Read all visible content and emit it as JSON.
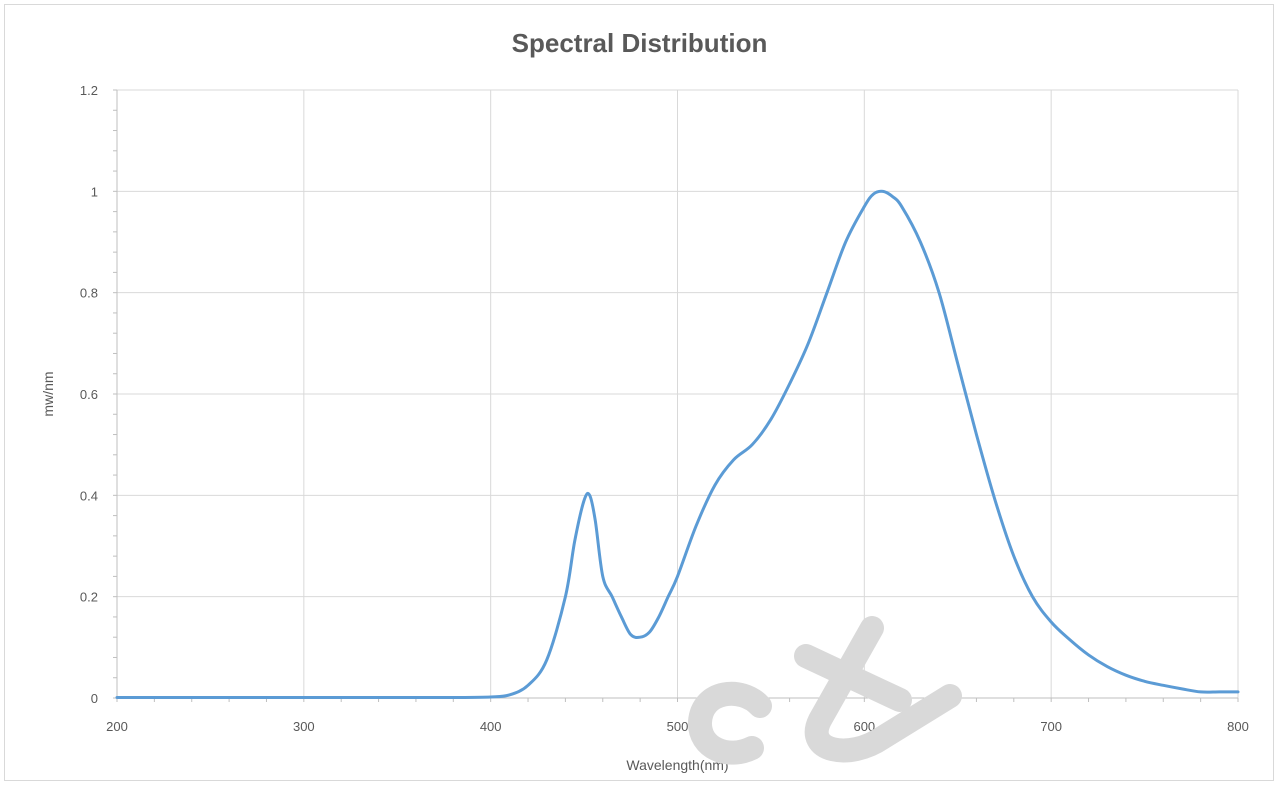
{
  "chart_data": {
    "type": "line",
    "title": "Spectral Distribution",
    "xlabel": "Wavelength(nm)",
    "ylabel": "mw/nm",
    "xlim": [
      200,
      800
    ],
    "ylim": [
      0,
      1.2
    ],
    "x_ticks": [
      200,
      300,
      400,
      500,
      600,
      700,
      800
    ],
    "y_ticks": [
      0,
      0.2,
      0.4,
      0.6,
      0.8,
      1,
      1.2
    ],
    "grid": true,
    "colors": {
      "series": "#5b9bd5",
      "grid": "#d9d9d9",
      "text": "#595959",
      "watermark": "#d9d9d9"
    },
    "series": [
      {
        "x": [
          200,
          250,
          300,
          350,
          380,
          400,
          410,
          420,
          430,
          440,
          445,
          450,
          453,
          456,
          460,
          465,
          470,
          475,
          480,
          485,
          490,
          495,
          500,
          510,
          520,
          530,
          540,
          550,
          560,
          570,
          580,
          590,
          600,
          605,
          610,
          615,
          620,
          630,
          640,
          650,
          660,
          670,
          680,
          690,
          700,
          710,
          720,
          730,
          740,
          750,
          760,
          770,
          780,
          790,
          800
        ],
        "y": [
          0.001,
          0.001,
          0.001,
          0.001,
          0.001,
          0.002,
          0.006,
          0.025,
          0.075,
          0.2,
          0.31,
          0.39,
          0.4,
          0.35,
          0.24,
          0.2,
          0.16,
          0.125,
          0.12,
          0.13,
          0.16,
          0.2,
          0.24,
          0.34,
          0.42,
          0.47,
          0.5,
          0.55,
          0.62,
          0.7,
          0.8,
          0.9,
          0.97,
          0.995,
          1.0,
          0.99,
          0.97,
          0.9,
          0.8,
          0.66,
          0.52,
          0.39,
          0.28,
          0.2,
          0.15,
          0.115,
          0.085,
          0.062,
          0.045,
          0.033,
          0.025,
          0.018,
          0.012,
          0.012,
          0.012
        ]
      }
    ]
  }
}
